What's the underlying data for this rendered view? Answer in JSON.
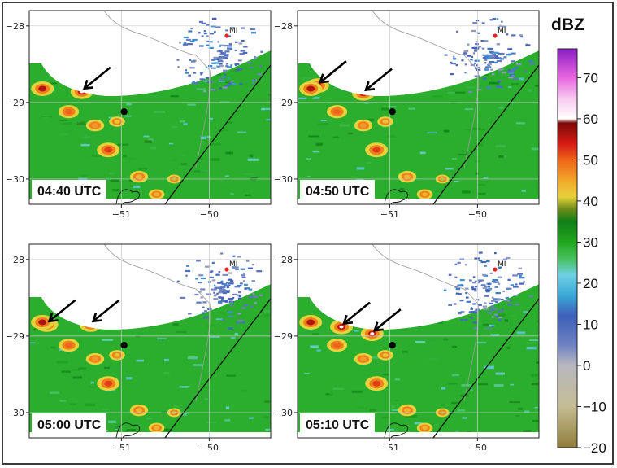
{
  "chart_data": {
    "type": "heatmap",
    "panels": [
      {
        "time": "04:40 UTC",
        "arrow_targets": [
          [
            -51.45,
            -28.86
          ]
        ]
      },
      {
        "time": "04:50 UTC",
        "arrow_targets": [
          [
            -51.82,
            -28.78
          ],
          [
            -51.3,
            -28.88
          ]
        ]
      },
      {
        "time": "05:00 UTC",
        "arrow_targets": [
          [
            -51.85,
            -28.85
          ],
          [
            -51.35,
            -28.85
          ]
        ]
      },
      {
        "time": "05:10 UTC",
        "arrow_targets": [
          [
            -51.55,
            -28.88
          ],
          [
            -51.2,
            -28.97
          ]
        ]
      }
    ],
    "xlim": [
      -52.05,
      -49.3
    ],
    "ylim": [
      -30.33,
      -27.8
    ],
    "x_ticks": [
      -51,
      -50
    ],
    "x_tick_labels": [
      "−51",
      "−50"
    ],
    "y_ticks": [
      -28,
      -29,
      -30
    ],
    "y_tick_labels": [
      "−28",
      "−29",
      "−30"
    ],
    "grid": true,
    "radar_site": {
      "label": "MI",
      "lon": -49.8,
      "lat": -28.13
    },
    "marker_point": {
      "lon": -50.97,
      "lat": -29.12
    },
    "colorbar": {
      "title": "dBZ",
      "ticks": [
        -20,
        -10,
        0,
        10,
        20,
        30,
        40,
        50,
        60,
        70
      ],
      "tick_labels": [
        "−20",
        "−10",
        "0",
        "10",
        "20",
        "30",
        "40",
        "50",
        "60",
        "70"
      ],
      "range": [
        -20,
        77
      ],
      "stops": [
        {
          "v": -20,
          "c": "#8f7e3a"
        },
        {
          "v": -10,
          "c": "#c4bc93"
        },
        {
          "v": 0,
          "c": "#b8b8c0"
        },
        {
          "v": 5,
          "c": "#6e82c2"
        },
        {
          "v": 12,
          "c": "#3f5fb8"
        },
        {
          "v": 17,
          "c": "#3aa7d6"
        },
        {
          "v": 22,
          "c": "#6fd0e3"
        },
        {
          "v": 26,
          "c": "#46c05c"
        },
        {
          "v": 30,
          "c": "#22a61e"
        },
        {
          "v": 35,
          "c": "#0f7f18"
        },
        {
          "v": 38,
          "c": "#6d8b1a"
        },
        {
          "v": 41,
          "c": "#e6d23a"
        },
        {
          "v": 45,
          "c": "#f2a72a"
        },
        {
          "v": 50,
          "c": "#ee6418"
        },
        {
          "v": 54,
          "c": "#d51a14"
        },
        {
          "v": 59,
          "c": "#7a0a08"
        },
        {
          "v": 60,
          "c": "#ffffff"
        },
        {
          "v": 65,
          "c": "#f7c8ef"
        },
        {
          "v": 70,
          "c": "#e866df"
        },
        {
          "v": 77,
          "c": "#8a1fc4"
        }
      ]
    }
  }
}
